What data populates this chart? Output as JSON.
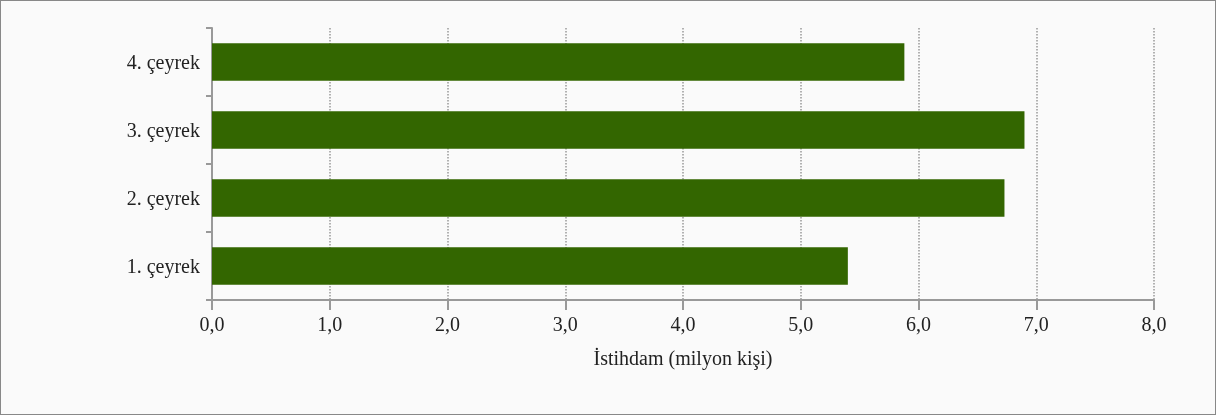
{
  "chart_data": {
    "type": "bar",
    "orientation": "horizontal",
    "xlabel": "İstihdam (milyon kişi)",
    "categories": [
      "4. çeyrek",
      "3. çeyrek",
      "2. çeyrek",
      "1. çeyrek"
    ],
    "values": [
      5.88,
      6.9,
      6.73,
      5.4
    ],
    "color": "#336600",
    "xlim": [
      0,
      8
    ],
    "xticks": [
      {
        "value": 0,
        "label": "0,0"
      },
      {
        "value": 1,
        "label": "1,0"
      },
      {
        "value": 2,
        "label": "2,0"
      },
      {
        "value": 3,
        "label": "3,0"
      },
      {
        "value": 4,
        "label": "4,0"
      },
      {
        "value": 5,
        "label": "5,0"
      },
      {
        "value": 6,
        "label": "6,0"
      },
      {
        "value": 7,
        "label": "7,0"
      },
      {
        "value": 8,
        "label": "8,0"
      }
    ],
    "grid": "x"
  }
}
